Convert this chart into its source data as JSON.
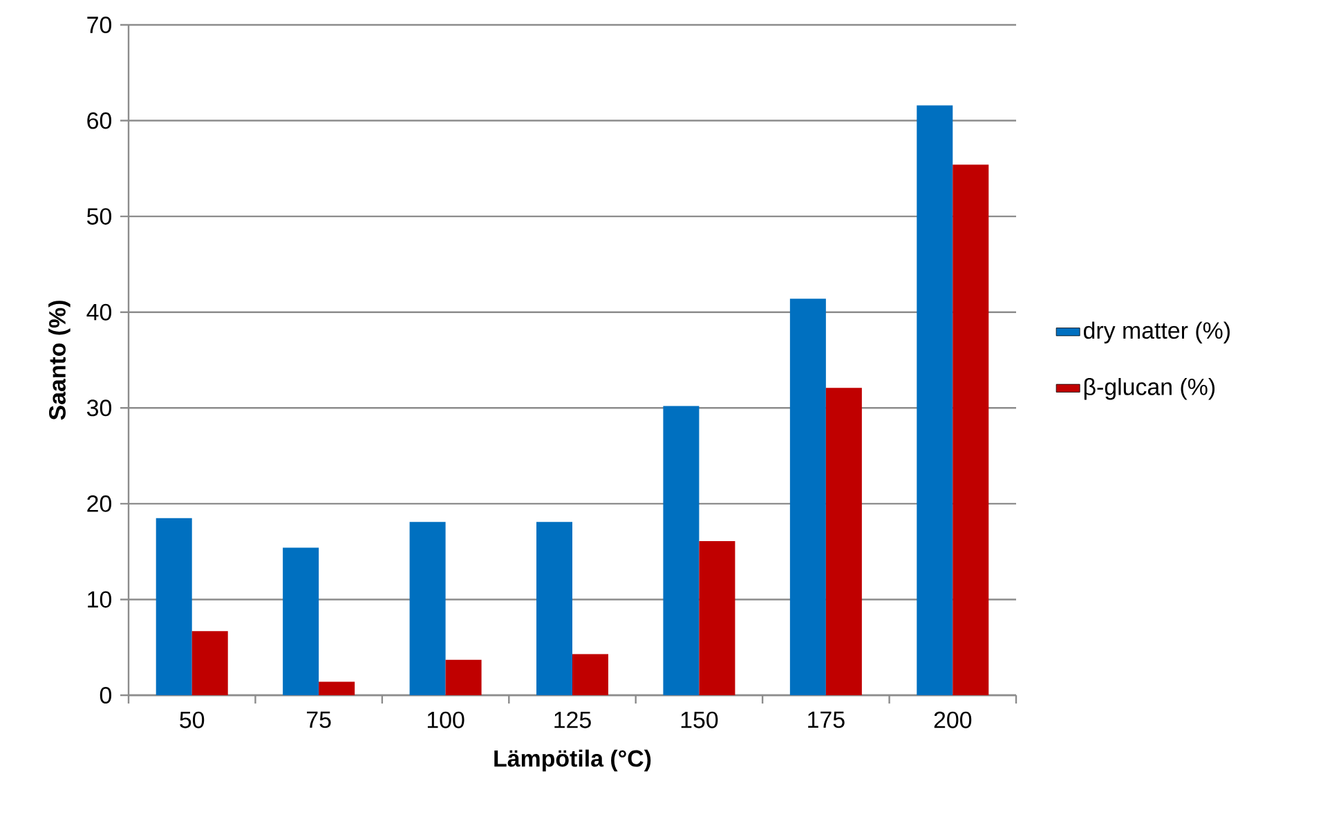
{
  "chart_data": {
    "type": "bar",
    "xlabel": "Lämpötila (°C)",
    "ylabel": "Saanto (%)",
    "categories": [
      "50",
      "75",
      "100",
      "125",
      "150",
      "175",
      "200"
    ],
    "series": [
      {
        "name": "dry matter (%)",
        "color": "#0070c0",
        "values": [
          18.5,
          15.4,
          18.1,
          18.1,
          30.2,
          41.4,
          61.6
        ]
      },
      {
        "name": "β-glucan (%)",
        "color": "#c00000",
        "values": [
          6.7,
          1.4,
          3.7,
          4.3,
          16.1,
          32.1,
          55.4
        ]
      }
    ],
    "ylim": [
      0,
      70
    ],
    "yticks": [
      0,
      10,
      20,
      30,
      40,
      50,
      60,
      70
    ],
    "grid": "y",
    "legend": "right"
  }
}
